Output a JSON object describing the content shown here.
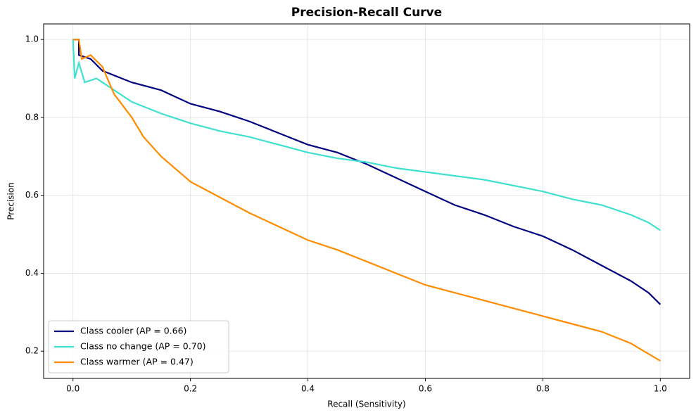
{
  "chart_data": {
    "type": "line",
    "title": "Precision-Recall Curve",
    "x_label": "Recall (Sensitivity)",
    "y_label": "Precision",
    "xlim": [
      -0.05,
      1.05
    ],
    "ylim": [
      0.13,
      1.04
    ],
    "xticks": [
      {
        "value": 0,
        "label": "0.0"
      },
      0.2,
      0.4,
      0.6,
      0.8,
      {
        "value": 1,
        "label": "1.0"
      }
    ],
    "yticks": [
      0.2,
      0.4,
      0.6,
      0.8,
      {
        "value": 1,
        "label": "1.0"
      }
    ],
    "grid": true,
    "legend": "lower left",
    "series": [
      {
        "name": "Class cooler (AP = 0.66)",
        "color": "#000080",
        "x": [
          0,
          0.01,
          0.01,
          0.03,
          0.05,
          0.1,
          0.15,
          0.2,
          0.25,
          0.3,
          0.35,
          0.4,
          0.45,
          0.5,
          0.55,
          0.6,
          0.65,
          0.7,
          0.75,
          0.8,
          0.85,
          0.9,
          0.95,
          0.98,
          1.0
        ],
        "values": [
          1.0,
          1.0,
          0.96,
          0.95,
          0.92,
          0.89,
          0.87,
          0.835,
          0.815,
          0.79,
          0.76,
          0.73,
          0.71,
          0.68,
          0.645,
          0.61,
          0.575,
          0.55,
          0.52,
          0.495,
          0.46,
          0.42,
          0.38,
          0.35,
          0.32
        ]
      },
      {
        "name": "Class no change (AP = 0.70)",
        "color": "#40e0d0",
        "x": [
          0,
          0.003,
          0.01,
          0.02,
          0.04,
          0.06,
          0.1,
          0.15,
          0.2,
          0.25,
          0.3,
          0.35,
          0.4,
          0.45,
          0.5,
          0.55,
          0.6,
          0.65,
          0.7,
          0.75,
          0.8,
          0.85,
          0.9,
          0.95,
          0.98,
          1.0
        ],
        "values": [
          1.0,
          0.9,
          0.94,
          0.89,
          0.9,
          0.88,
          0.84,
          0.81,
          0.785,
          0.765,
          0.75,
          0.73,
          0.71,
          0.695,
          0.685,
          0.67,
          0.66,
          0.65,
          0.64,
          0.625,
          0.61,
          0.59,
          0.575,
          0.55,
          0.53,
          0.51
        ]
      },
      {
        "name": "Class warmer (AP = 0.47)",
        "color": "#ff8c00",
        "x": [
          0,
          0.01,
          0.015,
          0.03,
          0.05,
          0.07,
          0.1,
          0.12,
          0.15,
          0.2,
          0.25,
          0.3,
          0.35,
          0.4,
          0.45,
          0.5,
          0.55,
          0.6,
          0.65,
          0.7,
          0.75,
          0.8,
          0.85,
          0.9,
          0.95,
          1.0
        ],
        "values": [
          1.0,
          1.0,
          0.95,
          0.96,
          0.93,
          0.86,
          0.8,
          0.75,
          0.7,
          0.635,
          0.595,
          0.555,
          0.52,
          0.485,
          0.46,
          0.43,
          0.4,
          0.37,
          0.35,
          0.33,
          0.31,
          0.29,
          0.27,
          0.25,
          0.22,
          0.175
        ]
      }
    ]
  }
}
